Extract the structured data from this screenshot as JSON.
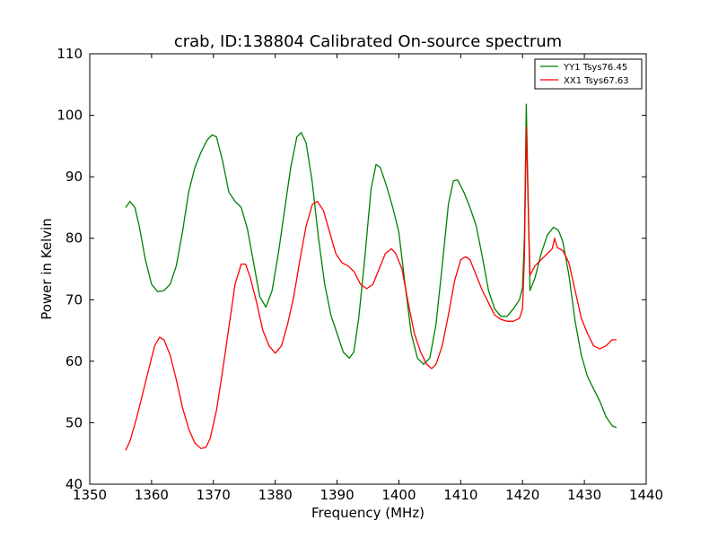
{
  "colors": {
    "yy1": "#008000",
    "xx1": "#ff0000"
  },
  "chart_data": {
    "type": "line",
    "title": "crab, ID:138804 Calibrated On-source spectrum",
    "xlabel": "Frequency (MHz)",
    "ylabel": "Power in Kelvin",
    "xlim": [
      1350,
      1440
    ],
    "ylim": [
      40,
      110
    ],
    "xticks": [
      "1350",
      "1360",
      "1370",
      "1380",
      "1390",
      "1400",
      "1410",
      "1420",
      "1430",
      "1440"
    ],
    "yticks": [
      "40",
      "50",
      "60",
      "70",
      "80",
      "90",
      "100",
      "110"
    ],
    "grid": false,
    "legend_position": "top-right",
    "series": [
      {
        "name": "YY1 Tsys76.45",
        "color": "#008000",
        "points": [
          [
            1355.8,
            85.0
          ],
          [
            1356.5,
            86.0
          ],
          [
            1357.3,
            85.0
          ],
          [
            1358.0,
            82.0
          ],
          [
            1359.0,
            76.5
          ],
          [
            1360.0,
            72.5
          ],
          [
            1361.0,
            71.3
          ],
          [
            1362.0,
            71.5
          ],
          [
            1363.0,
            72.5
          ],
          [
            1364.0,
            75.5
          ],
          [
            1365.0,
            81.0
          ],
          [
            1366.0,
            87.5
          ],
          [
            1367.0,
            91.5
          ],
          [
            1368.0,
            94.0
          ],
          [
            1369.0,
            96.0
          ],
          [
            1369.8,
            96.8
          ],
          [
            1370.5,
            96.5
          ],
          [
            1371.5,
            92.5
          ],
          [
            1372.5,
            87.5
          ],
          [
            1373.5,
            86.0
          ],
          [
            1374.5,
            85.0
          ],
          [
            1375.5,
            81.5
          ],
          [
            1376.5,
            76.0
          ],
          [
            1377.5,
            70.5
          ],
          [
            1378.5,
            68.8
          ],
          [
            1379.5,
            71.5
          ],
          [
            1380.5,
            77.5
          ],
          [
            1381.5,
            84.5
          ],
          [
            1382.5,
            91.5
          ],
          [
            1383.5,
            96.5
          ],
          [
            1384.2,
            97.2
          ],
          [
            1385.0,
            95.5
          ],
          [
            1386.0,
            89.0
          ],
          [
            1387.0,
            80.0
          ],
          [
            1388.0,
            72.5
          ],
          [
            1389.0,
            67.5
          ],
          [
            1390.0,
            64.5
          ],
          [
            1391.0,
            61.5
          ],
          [
            1392.0,
            60.5
          ],
          [
            1392.7,
            61.5
          ],
          [
            1393.5,
            67.0
          ],
          [
            1394.5,
            77.0
          ],
          [
            1395.5,
            88.0
          ],
          [
            1396.3,
            92.0
          ],
          [
            1397.0,
            91.5
          ],
          [
            1398.0,
            88.5
          ],
          [
            1399.0,
            85.0
          ],
          [
            1400.0,
            81.0
          ],
          [
            1401.0,
            72.5
          ],
          [
            1402.0,
            64.5
          ],
          [
            1403.0,
            60.5
          ],
          [
            1404.0,
            59.5
          ],
          [
            1405.0,
            60.5
          ],
          [
            1406.0,
            66.0
          ],
          [
            1407.0,
            75.5
          ],
          [
            1408.0,
            85.5
          ],
          [
            1408.8,
            89.3
          ],
          [
            1409.5,
            89.5
          ],
          [
            1410.5,
            87.5
          ],
          [
            1411.5,
            85.0
          ],
          [
            1412.5,
            82.0
          ],
          [
            1413.5,
            77.0
          ],
          [
            1414.5,
            71.5
          ],
          [
            1415.5,
            68.5
          ],
          [
            1416.5,
            67.3
          ],
          [
            1417.5,
            67.3
          ],
          [
            1418.5,
            68.5
          ],
          [
            1419.5,
            70.0
          ],
          [
            1420.0,
            72.0
          ],
          [
            1420.3,
            80.0
          ],
          [
            1420.6,
            101.8
          ],
          [
            1420.9,
            87.0
          ],
          [
            1421.2,
            71.5
          ],
          [
            1422.0,
            73.5
          ],
          [
            1423.0,
            77.5
          ],
          [
            1424.0,
            80.5
          ],
          [
            1425.0,
            81.8
          ],
          [
            1425.8,
            81.3
          ],
          [
            1426.5,
            79.5
          ],
          [
            1427.5,
            74.0
          ],
          [
            1428.5,
            66.5
          ],
          [
            1429.5,
            61.0
          ],
          [
            1430.5,
            57.5
          ],
          [
            1431.5,
            55.5
          ],
          [
            1432.5,
            53.5
          ],
          [
            1433.5,
            51.0
          ],
          [
            1434.5,
            49.5
          ],
          [
            1435.2,
            49.2
          ]
        ]
      },
      {
        "name": "XX1 Tsys67.63",
        "color": "#ff0000",
        "points": [
          [
            1355.8,
            45.5
          ],
          [
            1356.5,
            47.0
          ],
          [
            1357.5,
            50.5
          ],
          [
            1358.5,
            54.5
          ],
          [
            1359.5,
            58.5
          ],
          [
            1360.5,
            62.5
          ],
          [
            1361.3,
            63.9
          ],
          [
            1362.0,
            63.5
          ],
          [
            1363.0,
            61.0
          ],
          [
            1364.0,
            57.0
          ],
          [
            1365.0,
            52.5
          ],
          [
            1366.0,
            49.0
          ],
          [
            1367.0,
            46.7
          ],
          [
            1368.0,
            45.8
          ],
          [
            1368.8,
            46.0
          ],
          [
            1369.5,
            47.5
          ],
          [
            1370.5,
            52.0
          ],
          [
            1371.5,
            58.5
          ],
          [
            1372.5,
            65.5
          ],
          [
            1373.5,
            72.5
          ],
          [
            1374.5,
            75.8
          ],
          [
            1375.2,
            75.8
          ],
          [
            1376.0,
            73.5
          ],
          [
            1377.0,
            69.5
          ],
          [
            1378.0,
            65.0
          ],
          [
            1379.0,
            62.5
          ],
          [
            1380.0,
            61.3
          ],
          [
            1381.0,
            62.5
          ],
          [
            1382.0,
            66.0
          ],
          [
            1383.0,
            70.5
          ],
          [
            1384.0,
            76.5
          ],
          [
            1385.0,
            82.0
          ],
          [
            1386.0,
            85.5
          ],
          [
            1386.8,
            86.0
          ],
          [
            1387.8,
            84.5
          ],
          [
            1388.8,
            81.0
          ],
          [
            1389.8,
            77.5
          ],
          [
            1390.8,
            76.0
          ],
          [
            1391.8,
            75.5
          ],
          [
            1392.8,
            74.5
          ],
          [
            1393.8,
            72.5
          ],
          [
            1394.8,
            71.8
          ],
          [
            1395.8,
            72.5
          ],
          [
            1396.8,
            75.0
          ],
          [
            1397.8,
            77.5
          ],
          [
            1398.8,
            78.3
          ],
          [
            1399.5,
            77.5
          ],
          [
            1400.5,
            75.0
          ],
          [
            1401.5,
            69.5
          ],
          [
            1402.5,
            64.5
          ],
          [
            1403.5,
            61.5
          ],
          [
            1404.5,
            59.5
          ],
          [
            1405.3,
            58.8
          ],
          [
            1406.0,
            59.5
          ],
          [
            1407.0,
            62.5
          ],
          [
            1408.0,
            67.5
          ],
          [
            1409.0,
            73.0
          ],
          [
            1410.0,
            76.5
          ],
          [
            1410.8,
            77.0
          ],
          [
            1411.5,
            76.5
          ],
          [
            1412.5,
            74.0
          ],
          [
            1413.5,
            71.5
          ],
          [
            1414.5,
            69.5
          ],
          [
            1415.5,
            67.5
          ],
          [
            1416.5,
            66.8
          ],
          [
            1417.5,
            66.5
          ],
          [
            1418.5,
            66.5
          ],
          [
            1419.5,
            67.0
          ],
          [
            1420.0,
            68.5
          ],
          [
            1420.3,
            77.0
          ],
          [
            1420.6,
            98.0
          ],
          [
            1420.9,
            86.0
          ],
          [
            1421.2,
            74.0
          ],
          [
            1422.0,
            75.5
          ],
          [
            1423.0,
            76.5
          ],
          [
            1424.0,
            77.5
          ],
          [
            1424.8,
            78.3
          ],
          [
            1425.2,
            80.0
          ],
          [
            1425.6,
            78.5
          ],
          [
            1426.5,
            78.0
          ],
          [
            1427.5,
            76.0
          ],
          [
            1428.5,
            71.5
          ],
          [
            1429.5,
            67.0
          ],
          [
            1430.5,
            64.5
          ],
          [
            1431.5,
            62.5
          ],
          [
            1432.5,
            62.0
          ],
          [
            1433.5,
            62.5
          ],
          [
            1434.5,
            63.5
          ],
          [
            1435.2,
            63.5
          ]
        ]
      }
    ]
  }
}
